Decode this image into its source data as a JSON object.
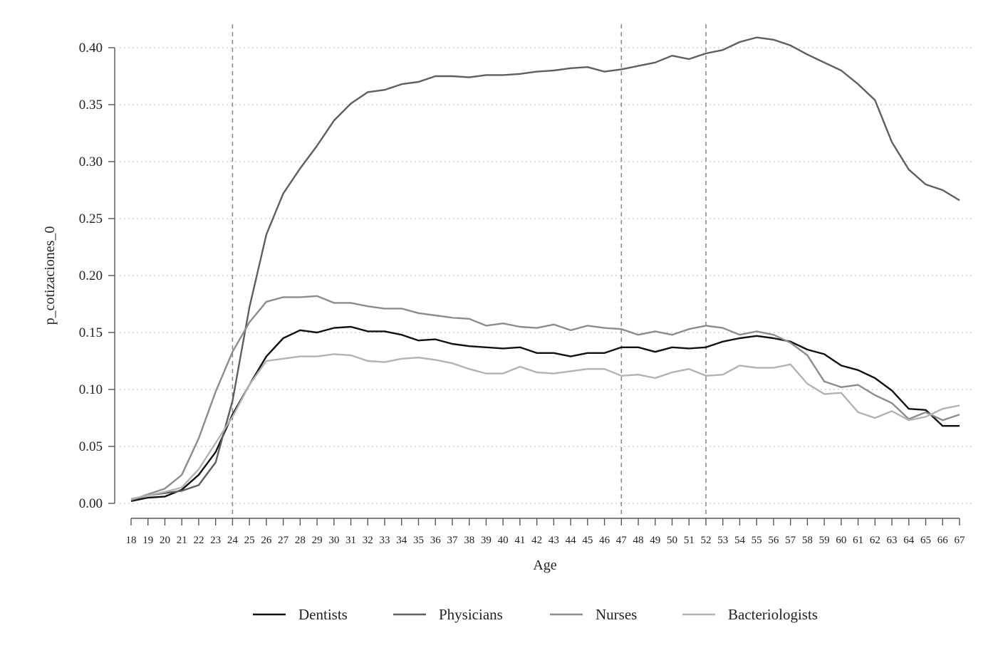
{
  "chart_data": {
    "type": "line",
    "xlabel": "Age",
    "ylabel": "p_cotizaciones_0",
    "xlim": [
      18,
      67
    ],
    "ylim": [
      0,
      0.4
    ],
    "yticks": [
      "0.00",
      "0.05",
      "0.10",
      "0.15",
      "0.20",
      "0.25",
      "0.30",
      "0.35",
      "0.40"
    ],
    "x": [
      18,
      19,
      20,
      21,
      22,
      23,
      24,
      25,
      26,
      27,
      28,
      29,
      30,
      31,
      32,
      33,
      34,
      35,
      36,
      37,
      38,
      39,
      40,
      41,
      42,
      43,
      44,
      45,
      46,
      47,
      48,
      49,
      50,
      51,
      52,
      53,
      54,
      55,
      56,
      57,
      58,
      59,
      60,
      61,
      62,
      63,
      64,
      65,
      66,
      67
    ],
    "reference_lines": [
      24,
      47,
      52
    ],
    "grid": "horizontal dotted",
    "legend_position": "bottom",
    "series": [
      {
        "name": "Dentists",
        "color": "#111111",
        "values": [
          0.002,
          0.005,
          0.006,
          0.012,
          0.025,
          0.045,
          0.078,
          0.104,
          0.129,
          0.145,
          0.152,
          0.15,
          0.154,
          0.155,
          0.151,
          0.151,
          0.148,
          0.143,
          0.144,
          0.14,
          0.138,
          0.137,
          0.136,
          0.137,
          0.132,
          0.132,
          0.129,
          0.132,
          0.132,
          0.137,
          0.137,
          0.133,
          0.137,
          0.136,
          0.137,
          0.142,
          0.145,
          0.147,
          0.145,
          0.142,
          0.135,
          0.131,
          0.121,
          0.117,
          0.11,
          0.099,
          0.083,
          0.082,
          0.068,
          0.068
        ]
      },
      {
        "name": "Physicians",
        "color": "#5f5f5f",
        "values": [
          0.003,
          0.007,
          0.009,
          0.011,
          0.016,
          0.036,
          0.09,
          0.172,
          0.236,
          0.272,
          0.294,
          0.314,
          0.336,
          0.351,
          0.361,
          0.363,
          0.368,
          0.37,
          0.375,
          0.375,
          0.374,
          0.376,
          0.376,
          0.377,
          0.379,
          0.38,
          0.382,
          0.383,
          0.379,
          0.381,
          0.384,
          0.387,
          0.393,
          0.39,
          0.395,
          0.398,
          0.405,
          0.409,
          0.407,
          0.402,
          0.394,
          0.387,
          0.38,
          0.368,
          0.354,
          0.317,
          0.293,
          0.28,
          0.275,
          0.266
        ]
      },
      {
        "name": "Nurses",
        "color": "#8c8c8c",
        "values": [
          0.003,
          0.008,
          0.013,
          0.025,
          0.057,
          0.098,
          0.133,
          0.159,
          0.177,
          0.181,
          0.181,
          0.182,
          0.176,
          0.176,
          0.173,
          0.171,
          0.171,
          0.167,
          0.165,
          0.163,
          0.162,
          0.156,
          0.158,
          0.155,
          0.154,
          0.157,
          0.152,
          0.156,
          0.154,
          0.153,
          0.148,
          0.151,
          0.148,
          0.153,
          0.156,
          0.154,
          0.148,
          0.151,
          0.148,
          0.141,
          0.13,
          0.107,
          0.102,
          0.104,
          0.095,
          0.088,
          0.074,
          0.08,
          0.073,
          0.078
        ]
      },
      {
        "name": "Bacteriologists",
        "color": "#b3b3b3",
        "values": [
          0.004,
          0.007,
          0.01,
          0.014,
          0.03,
          0.053,
          0.076,
          0.104,
          0.125,
          0.127,
          0.129,
          0.129,
          0.131,
          0.13,
          0.125,
          0.124,
          0.127,
          0.128,
          0.126,
          0.123,
          0.118,
          0.114,
          0.114,
          0.12,
          0.115,
          0.114,
          0.116,
          0.118,
          0.118,
          0.112,
          0.113,
          0.11,
          0.115,
          0.118,
          0.112,
          0.113,
          0.121,
          0.119,
          0.119,
          0.122,
          0.105,
          0.096,
          0.097,
          0.08,
          0.075,
          0.081,
          0.073,
          0.076,
          0.083,
          0.086
        ]
      }
    ]
  }
}
